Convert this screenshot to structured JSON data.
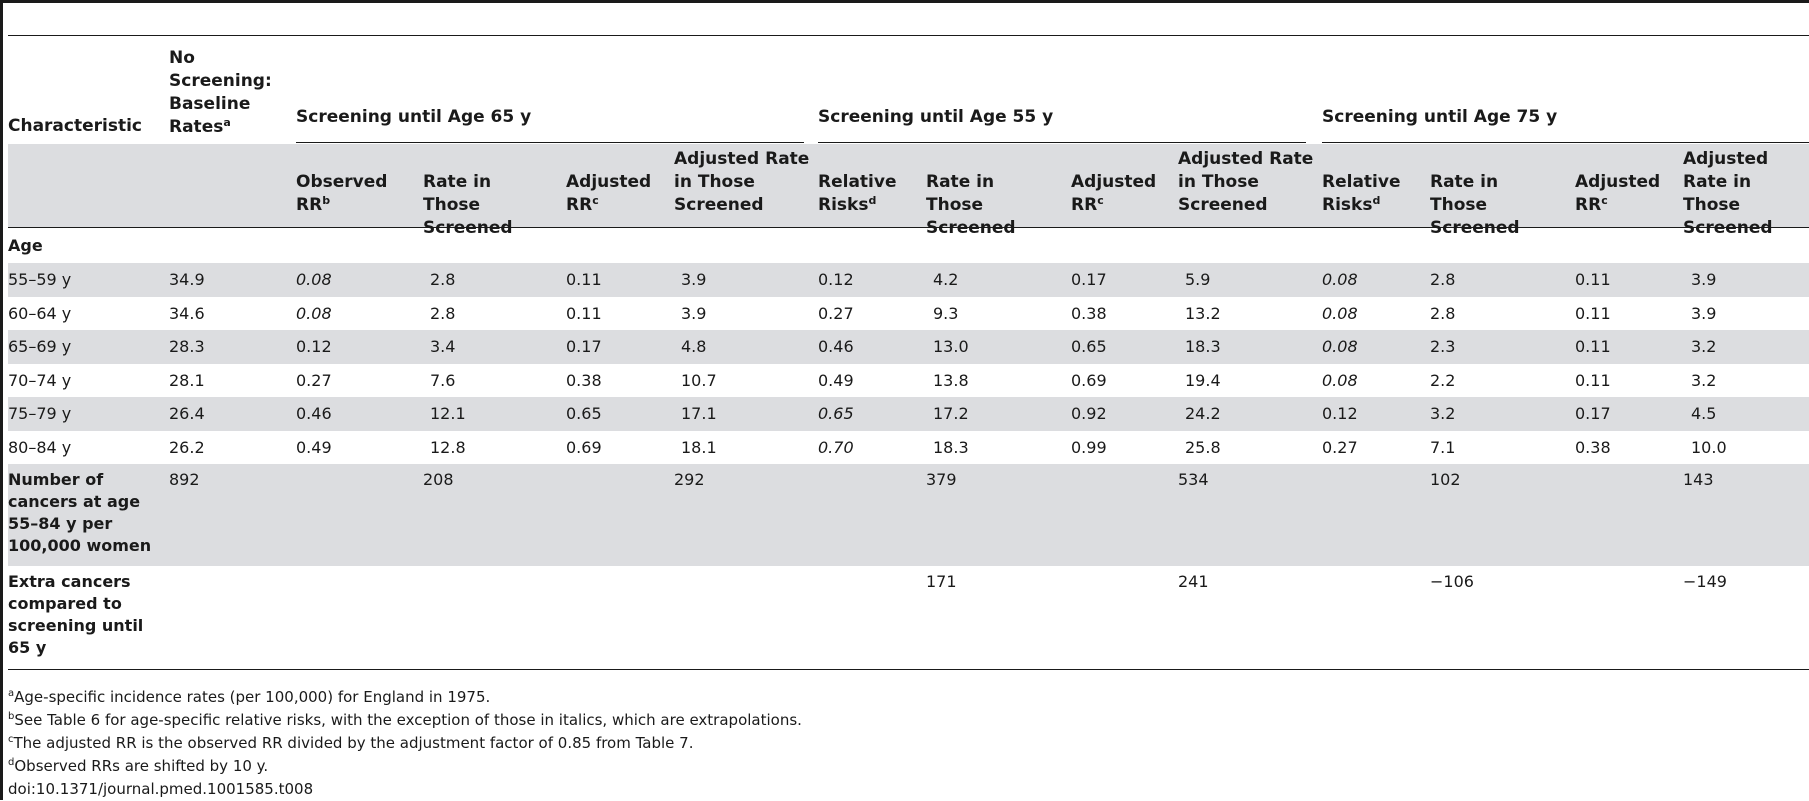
{
  "headers": {
    "characteristic": "Characteristic",
    "baseline": "No Screening: Baseline Rates",
    "baseline_sup": "a",
    "group65": "Screening until Age 65 y",
    "group55": "Screening until Age 55 y",
    "group75": "Screening until Age 75 y",
    "observed_rr": "Observed RR",
    "observed_rr_sup": "b",
    "rate_screened": "Rate in Those Screened",
    "adjusted_rr": "Adjusted RR",
    "adjusted_rr_sup": "c",
    "adjusted_rate": "Adjusted Rate in Those Screened",
    "relative_risks": "Relative Risks",
    "relative_risks_sup": "d"
  },
  "section_age": "Age",
  "rows": [
    {
      "label": "55–59 y",
      "base": "34.9",
      "c1": "0.08",
      "c1i": true,
      "c2": "2.8",
      "c3": "0.11",
      "c4": "3.9",
      "c5": "0.12",
      "c5i": false,
      "c6": "4.2",
      "c7": "0.17",
      "c8": "5.9",
      "c9": "0.08",
      "c9i": true,
      "c10": "2.8",
      "c11": "0.11",
      "c12": "3.9"
    },
    {
      "label": "60–64 y",
      "base": "34.6",
      "c1": "0.08",
      "c1i": true,
      "c2": "2.8",
      "c3": "0.11",
      "c4": "3.9",
      "c5": "0.27",
      "c5i": false,
      "c6": "9.3",
      "c7": "0.38",
      "c8": "13.2",
      "c9": "0.08",
      "c9i": true,
      "c10": "2.8",
      "c11": "0.11",
      "c12": "3.9"
    },
    {
      "label": "65–69 y",
      "base": "28.3",
      "c1": "0.12",
      "c1i": false,
      "c2": "3.4",
      "c3": "0.17",
      "c4": "4.8",
      "c5": "0.46",
      "c5i": false,
      "c6": "13.0",
      "c7": "0.65",
      "c8": "18.3",
      "c9": "0.08",
      "c9i": true,
      "c10": "2.3",
      "c11": "0.11",
      "c12": "3.2"
    },
    {
      "label": "70–74 y",
      "base": "28.1",
      "c1": "0.27",
      "c1i": false,
      "c2": "7.6",
      "c3": "0.38",
      "c4": "10.7",
      "c5": "0.49",
      "c5i": false,
      "c6": "13.8",
      "c7": "0.69",
      "c8": "19.4",
      "c9": "0.08",
      "c9i": true,
      "c10": "2.2",
      "c11": "0.11",
      "c12": "3.2"
    },
    {
      "label": "75–79 y",
      "base": "26.4",
      "c1": "0.46",
      "c1i": false,
      "c2": "12.1",
      "c3": "0.65",
      "c4": "17.1",
      "c5": "0.65",
      "c5i": true,
      "c6": "17.2",
      "c7": "0.92",
      "c8": "24.2",
      "c9": "0.12",
      "c9i": false,
      "c10": "3.2",
      "c11": "0.17",
      "c12": "4.5"
    },
    {
      "label": "80–84 y",
      "base": "26.2",
      "c1": "0.49",
      "c1i": false,
      "c2": "12.8",
      "c3": "0.69",
      "c4": "18.1",
      "c5": "0.70",
      "c5i": true,
      "c6": "18.3",
      "c7": "0.99",
      "c8": "25.8",
      "c9": "0.27",
      "c9i": false,
      "c10": "7.1",
      "c11": "0.38",
      "c12": "10.0"
    }
  ],
  "summary": [
    {
      "label": "Number of cancers at age 55–84 y per 100,000 women",
      "base": "892",
      "c2": "208",
      "c4": "292",
      "c6": "379",
      "c8": "534",
      "c10": "102",
      "c12": "143"
    },
    {
      "label": "Extra cancers compared to screening until 65 y",
      "base": "",
      "c2": "",
      "c4": "",
      "c6": "171",
      "c8": "241",
      "c10": "−106",
      "c12": "−149"
    }
  ],
  "footnotes": [
    {
      "mark": "a",
      "text": "Age-specific incidence rates (per 100,000) for England in 1975."
    },
    {
      "mark": "b",
      "text": "See Table 6 for age-specific relative risks, with the exception of those in italics, which are extrapolations."
    },
    {
      "mark": "c",
      "text": "The adjusted RR is the observed RR divided by the adjustment factor of 0.85 from Table 7."
    },
    {
      "mark": "d",
      "text": "Observed RRs are shifted by 10 y."
    }
  ],
  "doi": "doi:10.1371/journal.pmed.1001585.t008"
}
